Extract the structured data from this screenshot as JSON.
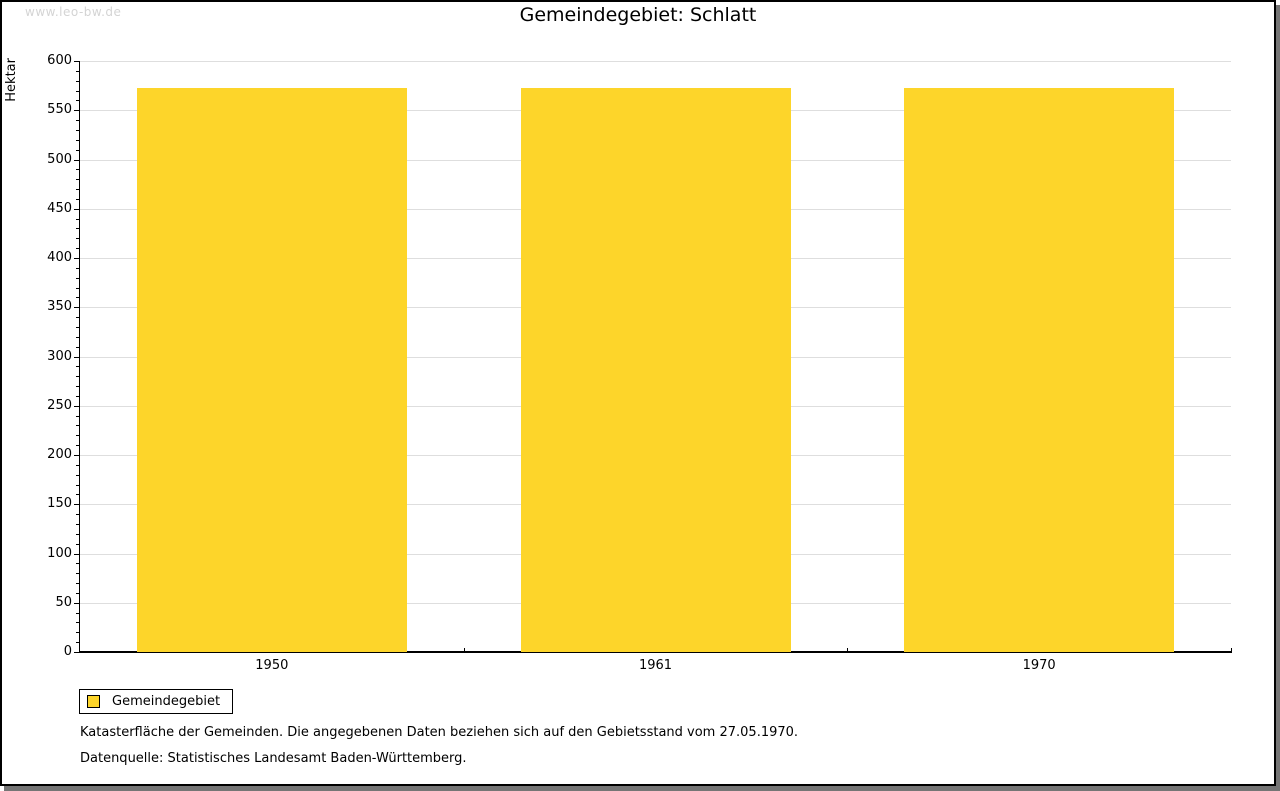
{
  "watermark": "www.leo-bw.de",
  "title": "Gemeindegebiet: Schlatt",
  "chart_data": {
    "type": "bar",
    "title": "Gemeindegebiet: Schlatt",
    "categories": [
      "1950",
      "1961",
      "1970"
    ],
    "series": [
      {
        "name": "Gemeindegebiet",
        "color": "#FDD52A",
        "values": [
          573,
          573,
          573
        ]
      }
    ],
    "xlabel": "",
    "ylabel": "Hektar",
    "ylim": [
      0,
      600
    ],
    "ytick_major_interval": 50,
    "ytick_minor_interval": 10,
    "grid": true,
    "legend_position": "bottom-left"
  },
  "legend": {
    "items": [
      {
        "label": "Gemeindegebiet",
        "swatch_color": "#FDD52A"
      }
    ]
  },
  "footnotes": {
    "line1": "Katasterfläche der Gemeinden. Die angegebenen Daten beziehen sich auf den Gebietsstand vom 27.05.1970.",
    "line2": "Datenquelle: Statistisches Landesamt Baden-Württemberg."
  },
  "colors": {
    "bar": "#FDD52A",
    "grid": "#DEDEDE",
    "axis": "#000000",
    "watermark": "#D4D4D4",
    "shadow": "#757575",
    "page_border": "#000000",
    "background": "#FFFFFF"
  }
}
